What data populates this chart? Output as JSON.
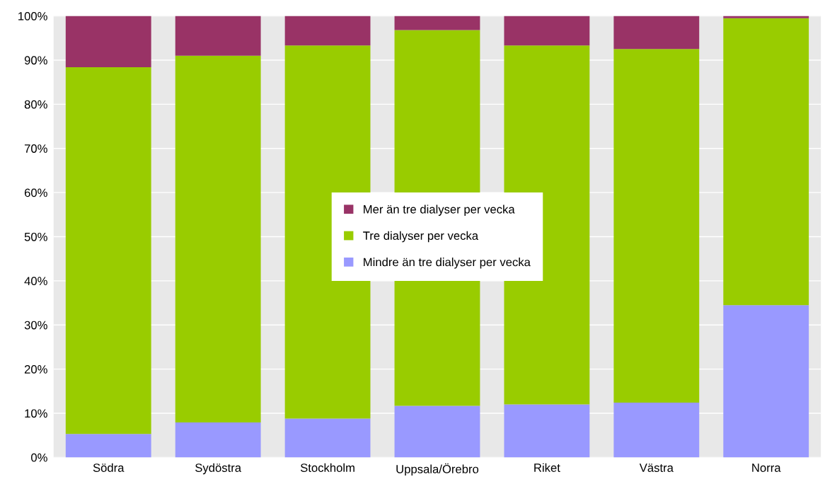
{
  "chart_data": {
    "type": "bar",
    "stacked": true,
    "categories": [
      "Södra",
      "Sydöstra",
      "Stockholm",
      "Uppsala/Örebro",
      "Riket",
      "Västra",
      "Norra"
    ],
    "series": [
      {
        "name": "Mindre än tre dialyser per vecka",
        "color": "#9999ff",
        "values": [
          5.3,
          7.9,
          8.8,
          11.7,
          12.0,
          12.4,
          34.5
        ]
      },
      {
        "name": "Tre dialyser per vecka",
        "color": "#99cc00",
        "values": [
          83.1,
          83.1,
          84.5,
          85.1,
          81.3,
          80.1,
          65.0
        ]
      },
      {
        "name": "Mer än tre dialyser per vecka",
        "color": "#993366",
        "values": [
          11.6,
          9.0,
          6.7,
          3.2,
          6.7,
          7.5,
          0.5
        ]
      }
    ],
    "ylim": [
      0,
      100
    ],
    "yticks": [
      {
        "value": 0,
        "label": "0%"
      },
      {
        "value": 10,
        "label": "10%"
      },
      {
        "value": 20,
        "label": "20%"
      },
      {
        "value": 30,
        "label": "30%"
      },
      {
        "value": 40,
        "label": "40%"
      },
      {
        "value": 50,
        "label": "50%"
      },
      {
        "value": 60,
        "label": "60%"
      },
      {
        "value": 70,
        "label": "70%"
      },
      {
        "value": 80,
        "label": "80%"
      },
      {
        "value": 90,
        "label": "90%"
      },
      {
        "value": 100,
        "label": "100%"
      }
    ],
    "grid": "y",
    "legend": "center"
  }
}
